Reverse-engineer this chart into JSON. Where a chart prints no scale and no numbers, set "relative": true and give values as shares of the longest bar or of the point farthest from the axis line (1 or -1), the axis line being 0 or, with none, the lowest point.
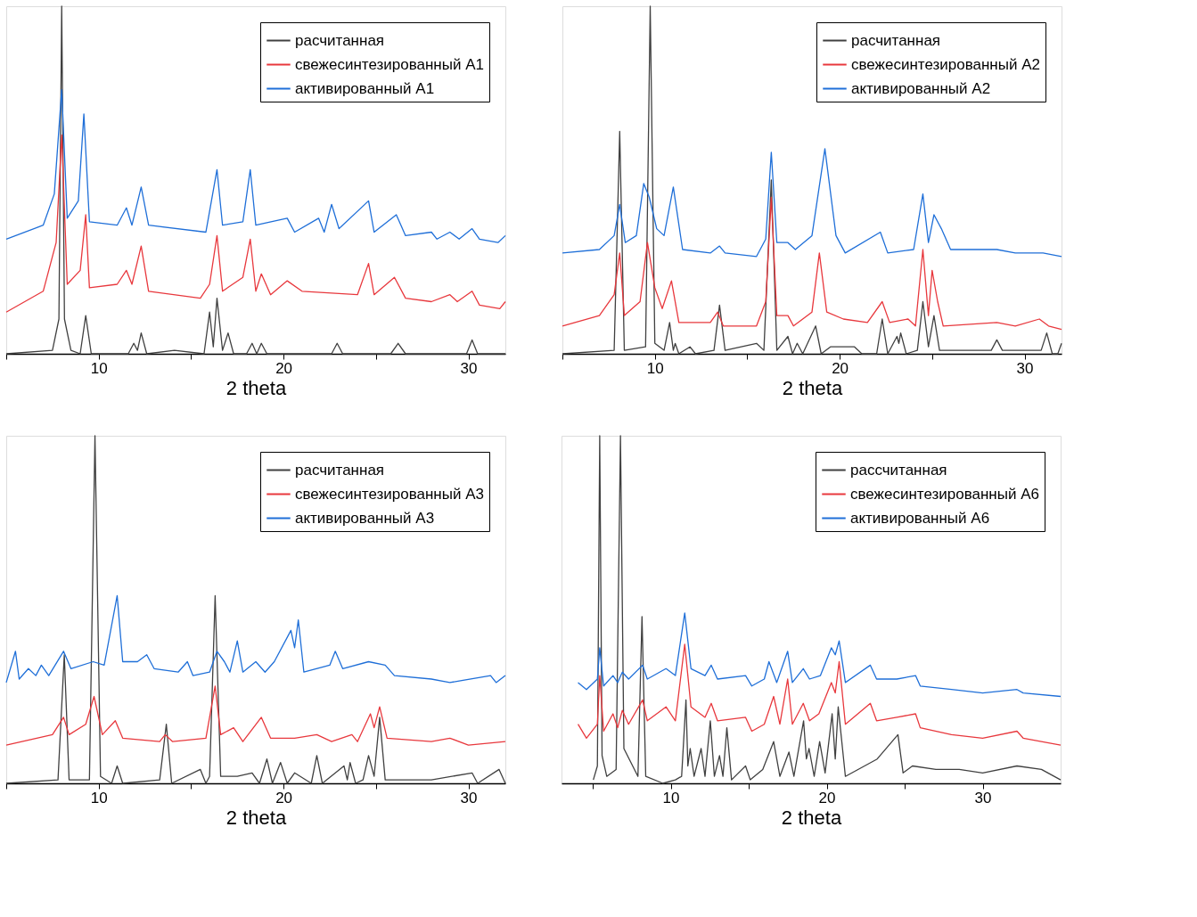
{
  "chart_data": [
    {
      "type": "line",
      "relative": true,
      "xlabel": "2 theta",
      "xlim": [
        5,
        32
      ],
      "xticks": [
        {
          "value": 5,
          "label": null
        },
        10,
        {
          "value": 15,
          "label": null
        },
        20,
        {
          "value": 25,
          "label": null
        },
        30
      ],
      "grid": false,
      "legend": "top right",
      "series": [
        {
          "name": "расчитанная",
          "color": "#404040",
          "x": [
            5,
            7.5,
            7.85,
            8.0,
            8.15,
            8.5,
            9.0,
            9.3,
            9.6,
            11.6,
            11.9,
            12.1,
            12.3,
            12.6,
            14.1,
            15.7,
            16.0,
            16.2,
            16.4,
            16.7,
            17.0,
            17.3,
            18.0,
            18.3,
            18.55,
            18.8,
            19.1,
            22.6,
            22.9,
            23.2,
            25.8,
            26.2,
            26.6,
            29.9,
            30.2,
            30.5,
            32
          ],
          "values": [
            0,
            0.01,
            0.1,
            1.0,
            0.1,
            0.01,
            0,
            0.11,
            0,
            0,
            0.03,
            0.01,
            0.06,
            0,
            0.01,
            0,
            0.12,
            0.02,
            0.16,
            0.01,
            0.06,
            0,
            0,
            0.03,
            0,
            0.03,
            0,
            0,
            0.03,
            0,
            0,
            0.03,
            0,
            0,
            0.04,
            0,
            0
          ]
        },
        {
          "name": "свежесинтезированный A1",
          "color": "#e8383d",
          "x": [
            5,
            7.0,
            7.7,
            8.0,
            8.3,
            9.0,
            9.3,
            9.5,
            11.0,
            11.5,
            11.8,
            12.3,
            12.7,
            15.5,
            16.0,
            16.4,
            16.7,
            17.8,
            18.2,
            18.5,
            18.8,
            19.3,
            20.2,
            21.0,
            24.0,
            24.6,
            24.9,
            26.0,
            26.6,
            28.0,
            29.0,
            29.4,
            30.2,
            30.6,
            31.7,
            32
          ],
          "values": [
            0.12,
            0.18,
            0.32,
            0.63,
            0.2,
            0.24,
            0.4,
            0.19,
            0.2,
            0.24,
            0.2,
            0.31,
            0.18,
            0.16,
            0.2,
            0.34,
            0.18,
            0.22,
            0.33,
            0.18,
            0.23,
            0.17,
            0.21,
            0.18,
            0.17,
            0.26,
            0.17,
            0.22,
            0.16,
            0.15,
            0.17,
            0.15,
            0.18,
            0.14,
            0.13,
            0.15
          ]
        },
        {
          "name": "активированный A1",
          "color": "#1f6fd8",
          "x": [
            5,
            7.0,
            7.6,
            8.0,
            8.3,
            8.9,
            9.2,
            9.5,
            11.0,
            11.5,
            11.8,
            12.3,
            12.7,
            15.8,
            16.4,
            16.7,
            17.8,
            18.2,
            18.5,
            20.2,
            20.6,
            21.9,
            22.2,
            22.6,
            23.0,
            24.6,
            24.9,
            26.1,
            26.6,
            28.0,
            28.3,
            29.0,
            29.5,
            30.2,
            30.6,
            31.6,
            32
          ],
          "values": [
            0.33,
            0.37,
            0.46,
            0.76,
            0.39,
            0.44,
            0.69,
            0.38,
            0.37,
            0.42,
            0.37,
            0.48,
            0.37,
            0.35,
            0.53,
            0.37,
            0.38,
            0.53,
            0.37,
            0.39,
            0.35,
            0.39,
            0.35,
            0.43,
            0.36,
            0.44,
            0.35,
            0.4,
            0.34,
            0.35,
            0.33,
            0.35,
            0.33,
            0.36,
            0.33,
            0.32,
            0.34
          ]
        }
      ]
    },
    {
      "type": "line",
      "relative": true,
      "xlabel": "2 theta",
      "xlim": [
        5,
        32
      ],
      "xticks": [
        {
          "value": 5,
          "label": null
        },
        10,
        {
          "value": 15,
          "label": null
        },
        20,
        {
          "value": 25,
          "label": null
        },
        30
      ],
      "grid": false,
      "legend": "top right",
      "series": [
        {
          "name": "расчитанная",
          "color": "#404040",
          "x": [
            5,
            7.8,
            8.1,
            8.35,
            9.5,
            9.75,
            10.0,
            10.5,
            10.8,
            11.0,
            11.1,
            11.3,
            11.9,
            12.2,
            13.2,
            13.5,
            13.8,
            15.5,
            15.9,
            16.3,
            16.6,
            17.2,
            17.45,
            17.7,
            18.0,
            18.7,
            19.0,
            19.5,
            20.2,
            20.8,
            21.2,
            22.0,
            22.3,
            22.6,
            23.1,
            23.2,
            23.3,
            23.6,
            24.2,
            24.5,
            24.8,
            25.1,
            25.4,
            28.2,
            28.5,
            28.8,
            30.9,
            31.2,
            31.5,
            31.8,
            32
          ],
          "values": [
            0,
            0.01,
            0.64,
            0.01,
            0.02,
            1.0,
            0.03,
            0.01,
            0.09,
            0.01,
            0.03,
            0,
            0.02,
            0,
            0.01,
            0.14,
            0.01,
            0.03,
            0.01,
            0.5,
            0.01,
            0.05,
            0,
            0.03,
            0,
            0.08,
            0,
            0.02,
            0.02,
            0.02,
            0,
            0,
            0.1,
            0,
            0.05,
            0.03,
            0.06,
            0,
            0.01,
            0.15,
            0.02,
            0.11,
            0.01,
            0.01,
            0.04,
            0.01,
            0.01,
            0.06,
            0,
            0,
            0.03
          ]
        },
        {
          "name": "свежесинтезированный A2",
          "color": "#e8383d",
          "x": [
            5,
            7.0,
            7.8,
            8.1,
            8.35,
            9.2,
            9.6,
            10.0,
            10.4,
            10.9,
            11.3,
            13.0,
            13.4,
            13.7,
            15.5,
            16.0,
            16.3,
            16.6,
            17.2,
            17.5,
            18.5,
            18.9,
            19.3,
            20.2,
            21.5,
            22.3,
            22.7,
            23.7,
            24.1,
            24.5,
            24.8,
            25.0,
            25.3,
            25.6,
            28.5,
            29.5,
            30.8,
            31.3,
            32
          ],
          "values": [
            0.08,
            0.11,
            0.17,
            0.29,
            0.11,
            0.15,
            0.32,
            0.19,
            0.13,
            0.21,
            0.09,
            0.09,
            0.12,
            0.08,
            0.08,
            0.15,
            0.45,
            0.11,
            0.11,
            0.08,
            0.12,
            0.29,
            0.12,
            0.1,
            0.09,
            0.15,
            0.09,
            0.1,
            0.08,
            0.3,
            0.11,
            0.24,
            0.15,
            0.08,
            0.09,
            0.08,
            0.1,
            0.08,
            0.07
          ]
        },
        {
          "name": "активированный A2",
          "color": "#1f6fd8",
          "x": [
            5,
            7.0,
            7.8,
            8.1,
            8.4,
            9.0,
            9.4,
            9.7,
            10.1,
            10.5,
            11.0,
            11.5,
            13.0,
            13.5,
            13.8,
            15.5,
            16.0,
            16.3,
            16.6,
            17.2,
            17.6,
            18.5,
            19.2,
            19.8,
            20.3,
            22.2,
            22.6,
            24.0,
            24.5,
            24.8,
            25.1,
            25.5,
            26.0,
            28.5,
            29.5,
            31.0,
            32
          ],
          "values": [
            0.29,
            0.3,
            0.34,
            0.43,
            0.32,
            0.34,
            0.49,
            0.45,
            0.36,
            0.34,
            0.48,
            0.3,
            0.29,
            0.31,
            0.29,
            0.28,
            0.33,
            0.58,
            0.32,
            0.32,
            0.3,
            0.34,
            0.59,
            0.34,
            0.29,
            0.35,
            0.29,
            0.3,
            0.46,
            0.32,
            0.4,
            0.36,
            0.3,
            0.3,
            0.29,
            0.29,
            0.28
          ]
        }
      ]
    },
    {
      "type": "line",
      "relative": true,
      "xlabel": "2 theta",
      "xlim": [
        5,
        32
      ],
      "xticks": [
        {
          "value": 5,
          "label": null
        },
        10,
        {
          "value": 15,
          "label": null
        },
        20,
        {
          "value": 25,
          "label": null
        },
        30
      ],
      "grid": false,
      "legend": "top right",
      "series": [
        {
          "name": "расчитанная",
          "color": "#404040",
          "x": [
            5,
            7.8,
            8.14,
            8.4,
            9.5,
            9.8,
            10.1,
            10.7,
            11.0,
            11.3,
            13.3,
            13.66,
            13.95,
            15.5,
            15.8,
            16.0,
            16.3,
            16.6,
            17.5,
            18.3,
            18.7,
            19.1,
            19.4,
            19.84,
            20.2,
            20.6,
            21.5,
            21.8,
            22.1,
            23.27,
            23.45,
            23.6,
            23.9,
            24.3,
            24.6,
            24.9,
            25.2,
            25.5,
            28,
            30.2,
            30.5,
            31.66,
            32
          ],
          "values": [
            0,
            0.01,
            0.37,
            0.01,
            0.01,
            1.0,
            0.02,
            0,
            0.05,
            0,
            0.01,
            0.17,
            0,
            0.04,
            0,
            0.02,
            0.54,
            0.02,
            0.02,
            0.03,
            0,
            0.07,
            0,
            0.06,
            0,
            0.03,
            0,
            0.08,
            0,
            0.05,
            0.01,
            0.06,
            0,
            0.01,
            0.08,
            0.02,
            0.19,
            0.01,
            0.01,
            0.03,
            0,
            0.04,
            0
          ]
        },
        {
          "name": "свежесинтезированный A3",
          "color": "#e8383d",
          "x": [
            5,
            7.5,
            8.1,
            8.4,
            9.3,
            9.75,
            10.2,
            10.9,
            11.3,
            13.3,
            13.6,
            14.0,
            15.8,
            16.3,
            16.6,
            17.3,
            17.8,
            18.8,
            19.3,
            20.6,
            21.8,
            22.6,
            23.7,
            24.0,
            24.7,
            24.9,
            25.2,
            25.6,
            28.0,
            29.0,
            30.0,
            32
          ],
          "values": [
            0.11,
            0.14,
            0.19,
            0.14,
            0.17,
            0.25,
            0.14,
            0.18,
            0.13,
            0.12,
            0.14,
            0.12,
            0.13,
            0.28,
            0.14,
            0.16,
            0.12,
            0.19,
            0.13,
            0.13,
            0.14,
            0.12,
            0.14,
            0.12,
            0.2,
            0.16,
            0.22,
            0.13,
            0.12,
            0.13,
            0.11,
            0.12
          ]
        },
        {
          "name": "активированный A3",
          "color": "#1f6fd8",
          "x": [
            5.0,
            5.5,
            5.7,
            6.2,
            6.6,
            6.9,
            7.3,
            8.1,
            8.5,
            9.7,
            10.3,
            11.0,
            11.3,
            12.1,
            12.6,
            13.0,
            14.3,
            14.8,
            15.1,
            16.0,
            16.4,
            16.8,
            17.1,
            17.5,
            17.8,
            18.5,
            19.0,
            19.5,
            20.4,
            20.6,
            20.8,
            21.1,
            22.5,
            22.8,
            23.2,
            24.6,
            25.5,
            26.0,
            28,
            29.0,
            31.2,
            31.5,
            32
          ],
          "values": [
            0.29,
            0.38,
            0.3,
            0.33,
            0.31,
            0.34,
            0.31,
            0.38,
            0.33,
            0.35,
            0.34,
            0.54,
            0.35,
            0.35,
            0.37,
            0.33,
            0.32,
            0.35,
            0.31,
            0.32,
            0.38,
            0.35,
            0.32,
            0.41,
            0.32,
            0.35,
            0.32,
            0.35,
            0.44,
            0.39,
            0.47,
            0.32,
            0.34,
            0.38,
            0.33,
            0.35,
            0.34,
            0.31,
            0.3,
            0.29,
            0.31,
            0.29,
            0.31
          ]
        }
      ]
    },
    {
      "type": "line",
      "relative": true,
      "xlabel": "2 theta",
      "xlim": [
        3,
        35
      ],
      "xticks": [
        {
          "value": 5,
          "label": null
        },
        10,
        {
          "value": 15,
          "label": null
        },
        20,
        {
          "value": 25,
          "label": null
        },
        30
      ],
      "grid": false,
      "legend": "top right",
      "series": [
        {
          "name": "рассчитанная",
          "color": "#404040",
          "x": [
            5.04,
            5.3,
            5.45,
            5.6,
            5.9,
            6.5,
            6.78,
            7.0,
            7.9,
            8.16,
            8.4,
            9.5,
            10.3,
            10.7,
            10.98,
            11.1,
            11.25,
            11.5,
            11.95,
            12.2,
            12.54,
            12.8,
            13.13,
            13.35,
            13.6,
            13.9,
            14.8,
            15.1,
            15.9,
            16.6,
            17.0,
            17.58,
            17.9,
            18.52,
            18.7,
            18.87,
            19.2,
            19.55,
            19.9,
            20.35,
            20.55,
            20.74,
            21.2,
            23.24,
            24.57,
            24.9,
            25.5,
            27.0,
            28.5,
            30,
            32.2,
            33.77,
            35
          ],
          "values": [
            0.01,
            0.05,
            1.0,
            0.08,
            0.02,
            0.04,
            1.0,
            0.1,
            0.02,
            0.48,
            0.02,
            0,
            0.01,
            0.02,
            0.24,
            0.05,
            0.1,
            0.02,
            0.1,
            0.02,
            0.18,
            0.02,
            0.08,
            0.02,
            0.16,
            0.01,
            0.05,
            0.01,
            0.04,
            0.12,
            0.02,
            0.09,
            0.02,
            0.18,
            0.07,
            0.1,
            0.02,
            0.12,
            0.03,
            0.2,
            0.07,
            0.22,
            0.02,
            0.07,
            0.14,
            0.03,
            0.05,
            0.04,
            0.04,
            0.03,
            0.05,
            0.04,
            0.01
          ]
        },
        {
          "name": "свежесинтезированный A6",
          "color": "#e8383d",
          "x": [
            4.06,
            4.6,
            5.3,
            5.45,
            5.7,
            6.3,
            6.6,
            6.9,
            7.3,
            8.2,
            8.5,
            9.7,
            10.3,
            10.9,
            11.3,
            12.2,
            12.6,
            13.0,
            14.8,
            15.2,
            16.0,
            16.6,
            17.0,
            17.5,
            17.8,
            18.5,
            18.9,
            19.5,
            20.3,
            20.55,
            20.8,
            21.2,
            22.8,
            23.2,
            24.5,
            25.7,
            26.0,
            28,
            30,
            32.2,
            32.6,
            35
          ],
          "values": [
            0.17,
            0.13,
            0.17,
            0.31,
            0.15,
            0.2,
            0.16,
            0.21,
            0.17,
            0.24,
            0.18,
            0.22,
            0.18,
            0.4,
            0.22,
            0.19,
            0.23,
            0.18,
            0.19,
            0.15,
            0.17,
            0.25,
            0.17,
            0.3,
            0.17,
            0.23,
            0.18,
            0.2,
            0.29,
            0.26,
            0.35,
            0.17,
            0.23,
            0.18,
            0.19,
            0.2,
            0.16,
            0.14,
            0.13,
            0.15,
            0.13,
            0.11
          ]
        },
        {
          "name": "активированный A6",
          "color": "#1f6fd8",
          "x": [
            4.06,
            4.6,
            5.3,
            5.45,
            5.7,
            6.3,
            6.6,
            6.9,
            7.3,
            8.2,
            8.5,
            9.7,
            10.3,
            10.9,
            11.3,
            12.2,
            12.6,
            13.0,
            14.8,
            15.2,
            16.0,
            16.3,
            16.8,
            17.5,
            17.8,
            18.5,
            18.9,
            19.6,
            20.3,
            20.55,
            20.8,
            21.2,
            22.8,
            23.2,
            24.5,
            25.7,
            26.0,
            28,
            30,
            32.2,
            32.6,
            35
          ],
          "values": [
            0.29,
            0.27,
            0.3,
            0.39,
            0.28,
            0.31,
            0.29,
            0.32,
            0.3,
            0.34,
            0.3,
            0.33,
            0.31,
            0.49,
            0.33,
            0.31,
            0.34,
            0.3,
            0.31,
            0.28,
            0.3,
            0.35,
            0.29,
            0.38,
            0.29,
            0.33,
            0.3,
            0.31,
            0.39,
            0.37,
            0.41,
            0.29,
            0.34,
            0.3,
            0.3,
            0.31,
            0.28,
            0.27,
            0.26,
            0.27,
            0.26,
            0.25
          ]
        }
      ]
    }
  ]
}
